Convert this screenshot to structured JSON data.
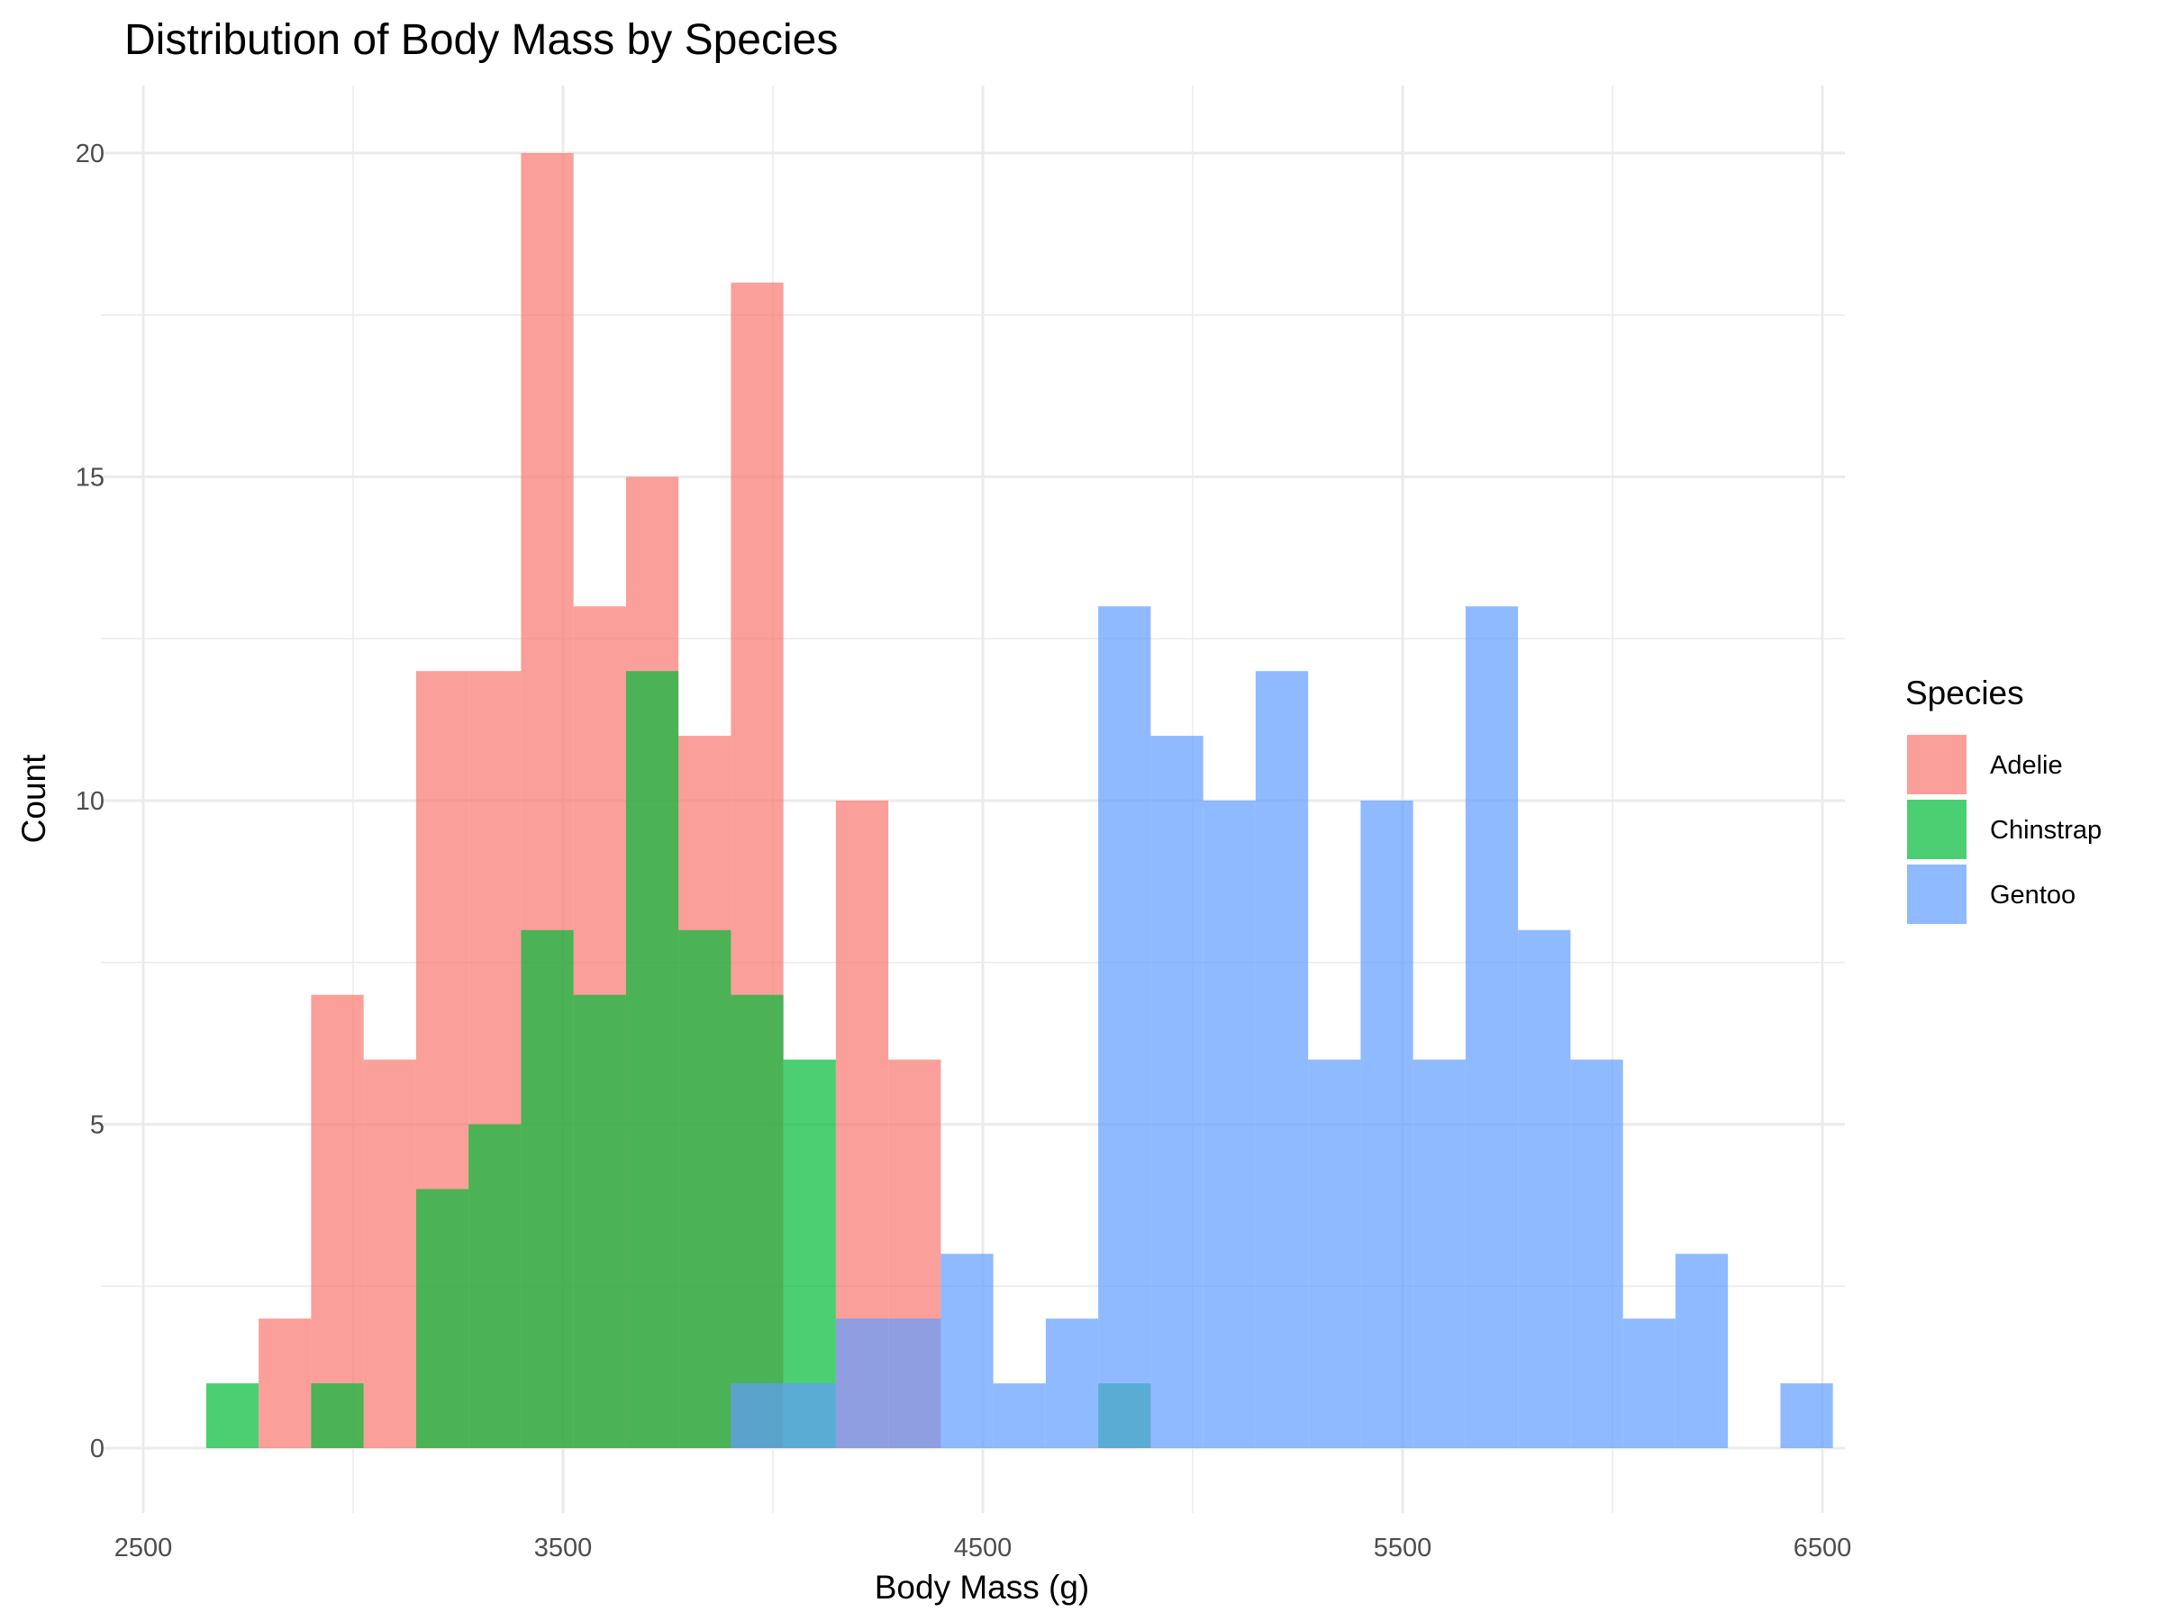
{
  "chart_data": {
    "type": "bar",
    "subtype": "overlapping-histogram",
    "title": "Distribution of Body Mass by Species",
    "xlabel": "Body Mass (g)",
    "ylabel": "Count",
    "xlim": [
      2500,
      6500
    ],
    "ylim": [
      0,
      20
    ],
    "x_ticks": [
      2500,
      3500,
      4500,
      5500,
      6500
    ],
    "y_ticks": [
      0,
      5,
      10,
      15,
      20
    ],
    "grid": true,
    "bin_width": 125,
    "bin_start": 2650,
    "legend": {
      "title": "Species",
      "position": "right"
    },
    "series": [
      {
        "name": "Adelie",
        "color": "#F8766D",
        "counts": [
          0,
          2,
          7,
          6,
          12,
          12,
          20,
          13,
          15,
          11,
          18,
          0,
          10,
          6,
          0,
          0,
          0,
          0,
          0,
          0,
          0,
          0,
          0,
          0,
          0,
          0,
          0,
          0,
          0,
          0
        ]
      },
      {
        "name": "Chinstrap",
        "color": "#00BA38",
        "counts": [
          1,
          0,
          1,
          0,
          4,
          5,
          8,
          7,
          12,
          8,
          7,
          6,
          0,
          0,
          0,
          0,
          0,
          1,
          0,
          0,
          0,
          0,
          0,
          0,
          0,
          0,
          0,
          0,
          0,
          0
        ]
      },
      {
        "name": "Gentoo",
        "color": "#619CFF",
        "counts": [
          0,
          0,
          0,
          0,
          0,
          0,
          0,
          0,
          0,
          0,
          1,
          1,
          2,
          2,
          3,
          1,
          2,
          13,
          11,
          10,
          12,
          6,
          10,
          6,
          13,
          8,
          6,
          2,
          3,
          0,
          1
        ]
      }
    ]
  }
}
